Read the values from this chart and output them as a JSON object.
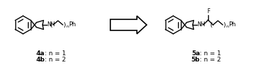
{
  "background_color": "#ffffff",
  "fig_width": 3.78,
  "fig_height": 0.97,
  "dpi": 100,
  "label_left_1": "4a",
  "label_left_2": "4b",
  "label_right_1": "5a",
  "label_right_2": "5b",
  "label_suffix_1": ": n = 1",
  "label_suffix_2": ": n = 2",
  "label_fontsize": 6.5,
  "line_color": "#000000",
  "lw": 1.0
}
